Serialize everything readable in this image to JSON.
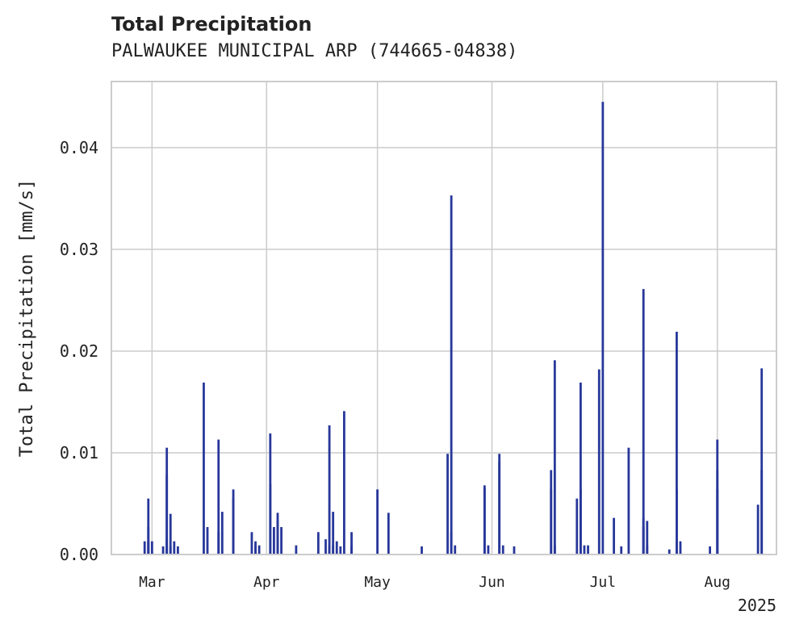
{
  "chart_data": {
    "type": "bar",
    "title": "Total Precipitation",
    "subtitle": "PALWAUKEE MUNICIPAL ARP (744665-04838)",
    "xlabel": "",
    "ylabel": "Total Precipitation [mm/s]",
    "x_tick_labels": [
      "Mar",
      "Apr",
      "May",
      "Jun",
      "Jul",
      "Aug"
    ],
    "x_tick_dates": [
      "2025-03-01",
      "2025-04-01",
      "2025-05-01",
      "2025-06-01",
      "2025-07-01",
      "2025-08-01"
    ],
    "x_year_label": "2025",
    "xlim": [
      "2025-02-18",
      "2025-08-17"
    ],
    "ylim": [
      0,
      0.0465
    ],
    "y_ticks": [
      0,
      0.01,
      0.02,
      0.03,
      0.04
    ],
    "y_tick_labels": [
      "0.00",
      "0.01",
      "0.02",
      "0.03",
      "0.04"
    ],
    "grid": true,
    "bar_color": "#27379a",
    "series": [
      {
        "x": [
          "2025-02-27",
          "2025-02-28",
          "2025-02-28",
          "2025-02-28",
          "2025-03-01",
          "2025-03-04",
          "2025-03-05",
          "2025-03-05",
          "2025-03-05",
          "2025-03-06",
          "2025-03-06",
          "2025-03-07",
          "2025-03-08",
          "2025-03-15",
          "2025-03-16",
          "2025-03-19",
          "2025-03-19",
          "2025-03-20",
          "2025-03-23",
          "2025-03-23",
          "2025-03-28",
          "2025-03-29",
          "2025-03-29",
          "2025-03-30",
          "2025-04-02",
          "2025-04-02",
          "2025-04-03",
          "2025-04-04",
          "2025-04-04",
          "2025-04-05",
          "2025-04-09",
          "2025-04-15",
          "2025-04-17",
          "2025-04-18",
          "2025-04-18",
          "2025-04-19",
          "2025-04-19",
          "2025-04-20",
          "2025-04-21",
          "2025-04-22",
          "2025-04-24",
          "2025-04-24",
          "2025-05-01",
          "2025-05-04",
          "2025-05-13",
          "2025-05-20",
          "2025-05-21",
          "2025-05-21",
          "2025-05-22",
          "2025-05-30",
          "2025-05-30",
          "2025-05-31",
          "2025-06-07",
          "2025-06-03",
          "2025-06-03",
          "2025-06-04",
          "2025-06-17",
          "2025-06-17",
          "2025-06-18",
          "2025-06-18",
          "2025-06-24",
          "2025-06-25",
          "2025-06-25",
          "2025-06-26",
          "2025-06-27",
          "2025-06-30",
          "2025-07-01",
          "2025-07-04",
          "2025-07-06",
          "2025-07-08",
          "2025-07-12",
          "2025-07-12",
          "2025-07-12",
          "2025-07-13",
          "2025-07-13",
          "2025-07-19",
          "2025-07-21",
          "2025-07-21",
          "2025-07-22",
          "2025-07-30",
          "2025-08-01",
          "2025-08-01",
          "2025-08-01",
          "2025-08-12",
          "2025-08-13",
          "2025-08-13"
        ],
        "values": [
          0.0013,
          0.0055,
          0.0027,
          0.0013,
          0.0013,
          0.0008,
          0.0105,
          0.0015,
          0.0078,
          0.004,
          0.0008,
          0.0013,
          0.0008,
          0.0169,
          0.0027,
          0.0113,
          0.0022,
          0.0042,
          0.0064,
          0.0055,
          0.0022,
          0.0013,
          0.0009,
          0.0009,
          0.0069,
          0.0119,
          0.0027,
          0.0034,
          0.0041,
          0.0027,
          0.0009,
          0.0022,
          0.0015,
          0.0009,
          0.0127,
          0.0009,
          0.0042,
          0.0013,
          0.0008,
          0.0141,
          0.0022,
          0.0008,
          0.0064,
          0.0041,
          0.0008,
          0.0099,
          0.0353,
          0.0022,
          0.0009,
          0.0065,
          0.0068,
          0.0009,
          0.0008,
          0.0091,
          0.0099,
          0.0009,
          0.0064,
          0.0083,
          0.0191,
          0.0009,
          0.0055,
          0.0064,
          0.0169,
          0.0009,
          0.0009,
          0.0182,
          0.0445,
          0.0036,
          0.0008,
          0.0105,
          0.0261,
          0.0027,
          0.0036,
          0.0033,
          0.0009,
          0.0005,
          0.0219,
          0.0064,
          0.0013,
          0.0008,
          0.0064,
          0.0083,
          0.0113,
          0.0049,
          0.0183,
          0.0083
        ]
      }
    ]
  }
}
